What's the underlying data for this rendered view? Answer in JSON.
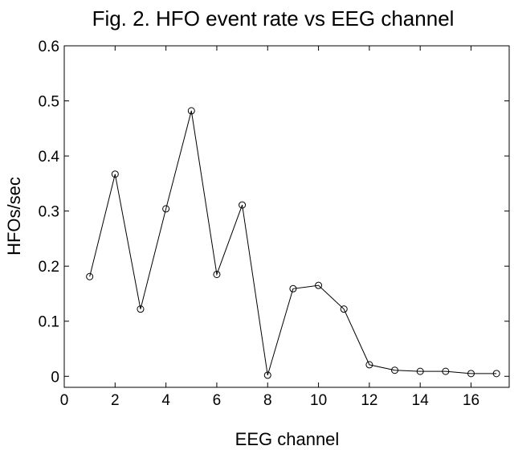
{
  "chart_data": {
    "type": "line",
    "title": "Fig. 2. HFO event rate vs EEG channel",
    "xlabel": "EEG channel",
    "ylabel": "HFOs/sec",
    "xlim": [
      0,
      17.5
    ],
    "ylim": [
      -0.02,
      0.6
    ],
    "xticks": [
      0,
      2,
      4,
      6,
      8,
      10,
      12,
      14,
      16
    ],
    "yticks": [
      0,
      0.1,
      0.2,
      0.3,
      0.4,
      0.5,
      0.6
    ],
    "ytick_labels": [
      "0",
      "0.1",
      "0.2",
      "0.3",
      "0.4",
      "0.5",
      "0.6"
    ],
    "grid": false,
    "marker": "open-circle",
    "line_color": "#000000",
    "x": [
      1,
      2,
      3,
      4,
      5,
      6,
      7,
      8,
      9,
      10,
      11,
      12,
      13,
      14,
      15,
      16,
      17
    ],
    "series": [
      {
        "values": [
          0.181,
          0.367,
          0.122,
          0.304,
          0.482,
          0.185,
          0.311,
          0.002,
          0.159,
          0.165,
          0.122,
          0.021,
          0.011,
          0.009,
          0.009,
          0.005,
          0.005
        ]
      }
    ]
  }
}
